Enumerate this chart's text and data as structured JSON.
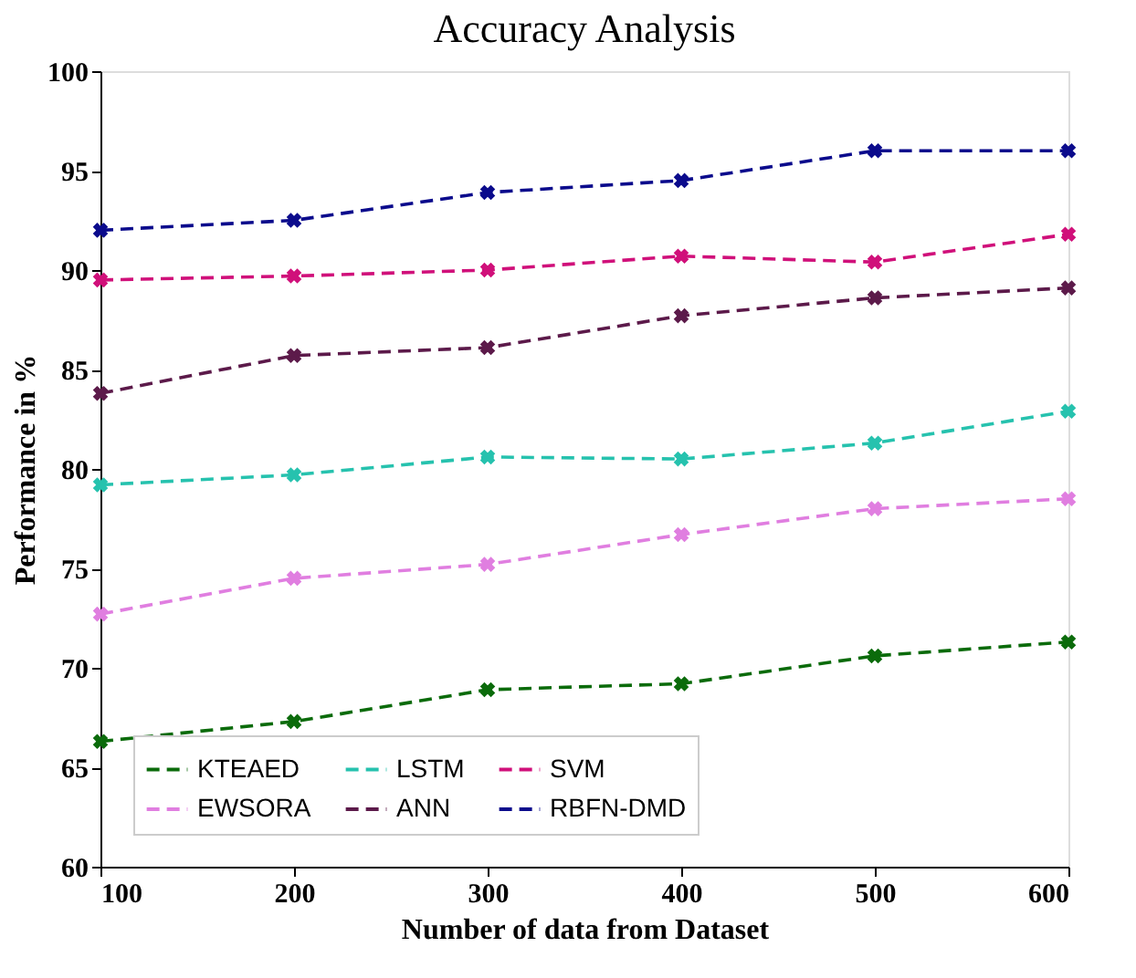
{
  "chart_data": {
    "type": "line",
    "title": "Accuracy Analysis",
    "xlabel": "Number of data from Dataset",
    "ylabel": "Performance in %",
    "x": [
      100,
      200,
      300,
      400,
      500,
      600
    ],
    "series": [
      {
        "name": "KTEAED",
        "color": "#0b6b0b",
        "values": [
          66.3,
          67.3,
          68.9,
          69.2,
          70.6,
          71.3
        ]
      },
      {
        "name": "EWSORA",
        "color": "#e07ee0",
        "values": [
          72.7,
          74.5,
          75.2,
          76.7,
          78.0,
          78.5
        ]
      },
      {
        "name": "LSTM",
        "color": "#26c2ae",
        "values": [
          79.2,
          79.7,
          80.6,
          80.5,
          81.3,
          82.9
        ]
      },
      {
        "name": "ANN",
        "color": "#5c1a4a",
        "values": [
          83.8,
          85.7,
          86.1,
          87.7,
          88.6,
          89.1
        ]
      },
      {
        "name": "SVM",
        "color": "#d0107a",
        "values": [
          89.5,
          89.7,
          90.0,
          90.7,
          90.4,
          91.8
        ]
      },
      {
        "name": "RBFN-DMD",
        "color": "#0b0b8c",
        "values": [
          92.0,
          92.5,
          93.9,
          94.5,
          96.0,
          96.0
        ]
      }
    ],
    "xlim": [
      100,
      600
    ],
    "xticks": [
      100,
      200,
      300,
      400,
      500,
      600
    ],
    "ylim": [
      60,
      100
    ],
    "yticks": [
      60,
      65,
      70,
      75,
      80,
      85,
      90,
      95,
      100
    ],
    "grid": false,
    "legend": "bottom left",
    "marker": "cross",
    "line_style": "dashed"
  }
}
